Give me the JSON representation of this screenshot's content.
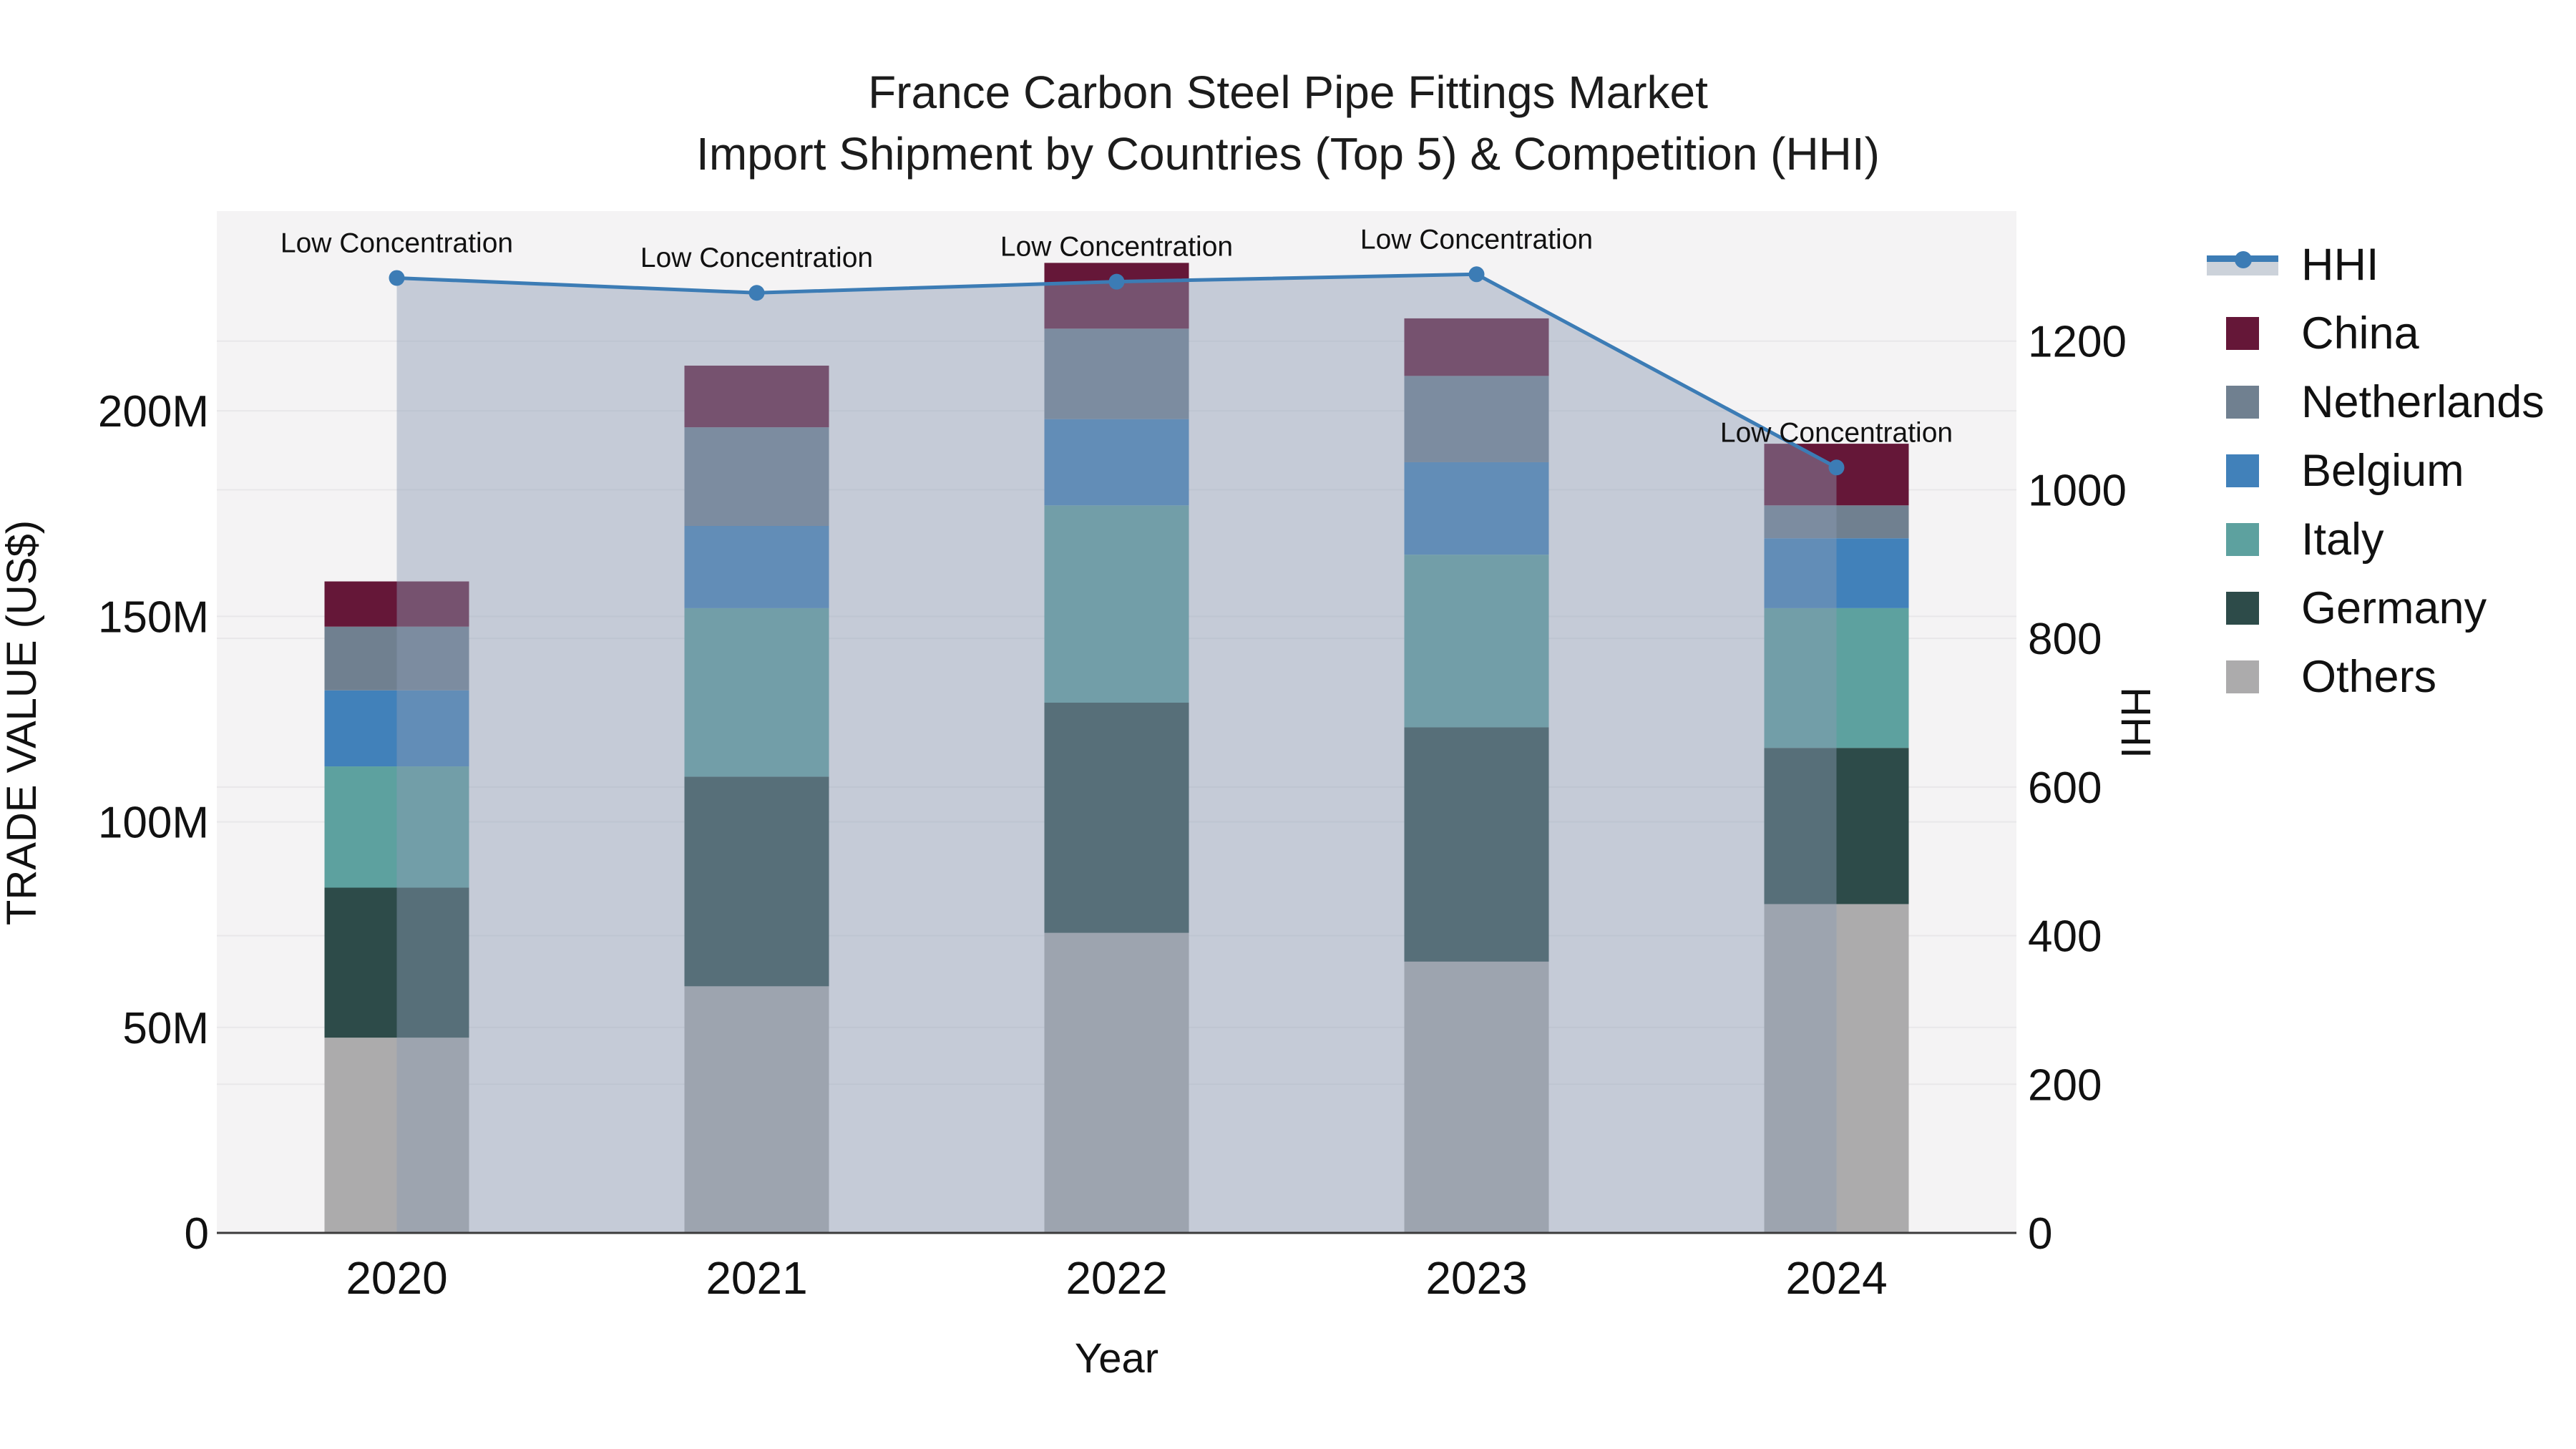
{
  "title": {
    "line1": "France Carbon Steel Pipe Fittings Market",
    "line2": "Import Shipment by Countries (Top 5) & Competition (HHI)"
  },
  "legend": [
    {
      "label": "HHI",
      "type": "line",
      "color": "#3c7cb5",
      "band_color": "#ccd2da"
    },
    {
      "label": "China",
      "type": "square",
      "color": "#651738"
    },
    {
      "label": "Netherlands",
      "type": "square",
      "color": "#708090"
    },
    {
      "label": "Belgium",
      "type": "square",
      "color": "#4181ba"
    },
    {
      "label": "Italy",
      "type": "square",
      "color": "#5da19f"
    },
    {
      "label": "Germany",
      "type": "square",
      "color": "#2d4b49"
    },
    {
      "label": "Others",
      "type": "square",
      "color": "#acabac"
    }
  ],
  "colors": {
    "plot_bg": "#f4f3f4",
    "grid": "#e8e7e9",
    "baseline": "#3b3b3b",
    "hhi_line": "#3c7cb5",
    "hhi_fill": "rgba(140,155,180,0.45)",
    "text": "#111111"
  },
  "chart_data": {
    "type": "stacked-bar+line",
    "categories": [
      "2020",
      "2021",
      "2022",
      "2023",
      "2024"
    ],
    "bar_value_unit": "million US$",
    "series": [
      {
        "name": "Others",
        "color": "#acabac",
        "values": [
          47.5,
          60,
          73,
          66,
          80
        ]
      },
      {
        "name": "Germany",
        "color": "#2d4b49",
        "values": [
          36.5,
          51,
          56,
          57,
          38
        ]
      },
      {
        "name": "Italy",
        "color": "#5da19f",
        "values": [
          29.5,
          41,
          48,
          42,
          34
        ]
      },
      {
        "name": "Belgium",
        "color": "#4181ba",
        "values": [
          18.5,
          20,
          21,
          22.5,
          17
        ]
      },
      {
        "name": "Netherlands",
        "color": "#708090",
        "values": [
          15.5,
          24,
          22,
          21,
          8
        ]
      },
      {
        "name": "China",
        "color": "#651738",
        "values": [
          11,
          15,
          16,
          14,
          15
        ]
      }
    ],
    "bar_totals": [
      158.5,
      211,
      236,
      222.5,
      192
    ],
    "line": {
      "name": "HHI",
      "axis": "right",
      "color": "#3c7cb5",
      "fill_to_zero": true,
      "values": [
        1285,
        1265,
        1280,
        1290,
        1030
      ]
    },
    "annotations": [
      "Low Concentration",
      "Low Concentration",
      "Low Concentration",
      "Low Concentration",
      "Low Concentration"
    ],
    "x_axis": {
      "title": "Year",
      "tick_labels": [
        "2020",
        "2021",
        "2022",
        "2023",
        "2024"
      ]
    },
    "y_left": {
      "title": "TRADE VALUE (US$)",
      "ticks": [
        0,
        50,
        100,
        150,
        200
      ],
      "tick_labels": [
        "0",
        "50M",
        "100M",
        "150M",
        "200M"
      ],
      "range": [
        0,
        248.6
      ]
    },
    "y_right": {
      "title": "HHI",
      "ticks": [
        0,
        200,
        400,
        600,
        800,
        1000,
        1200
      ],
      "tick_labels": [
        "0",
        "200",
        "400",
        "600",
        "800",
        "1000",
        "1200"
      ],
      "range": [
        0,
        1375
      ]
    },
    "legend_position": "right",
    "grid": true
  }
}
